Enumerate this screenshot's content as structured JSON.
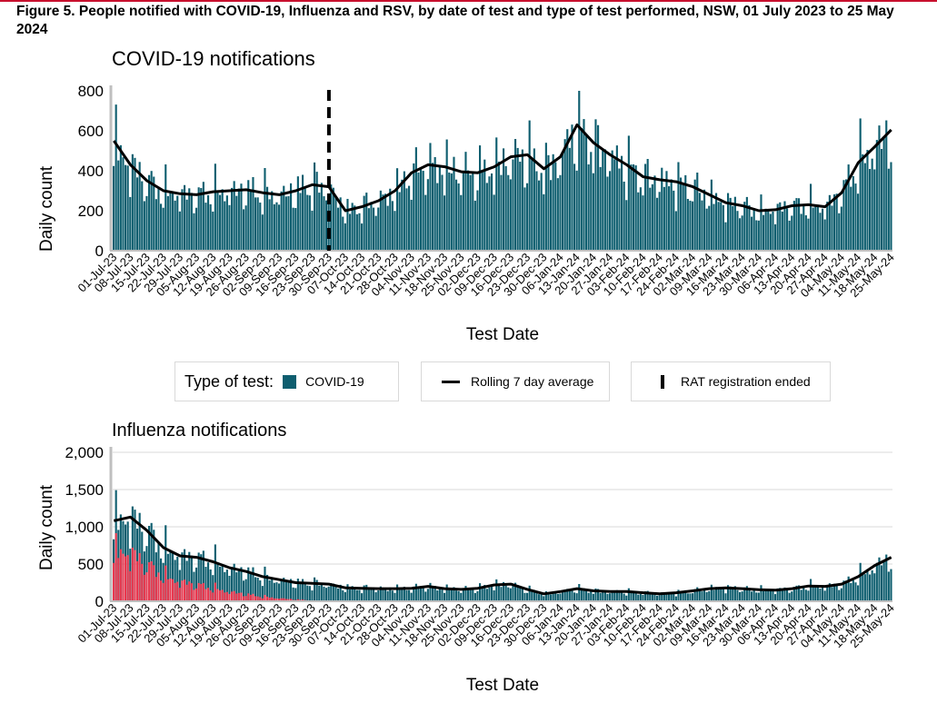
{
  "figure": {
    "title": "Figure 5. People notified with COVID-19, Influenza and RSV, by date of test and type of test performed, NSW, 01 July 2023 to 25 May 2024",
    "colors": {
      "covid": "#0e5e6f",
      "rat": "#e8384f",
      "avg": "#000000",
      "accent": "#c8102e"
    }
  },
  "legend": {
    "type_label": "Type of test:",
    "covid_label": "COVID-19",
    "avg_label": "Rolling 7 day average",
    "rat_label": "RAT registration ended"
  },
  "chart_data": [
    {
      "type": "bar",
      "title": "COVID-19 notifications",
      "xlabel": "Test Date",
      "ylabel": "Daily count",
      "ylim": [
        0,
        800
      ],
      "yticks": [
        "0",
        "200",
        "400",
        "600",
        "800"
      ],
      "grid": false,
      "date_range": [
        "2023-07-01",
        "2024-05-25"
      ],
      "x_ticks": [
        "01-Jul-23",
        "08-Jul-23",
        "15-Jul-23",
        "22-Jul-23",
        "29-Jul-23",
        "05-Aug-23",
        "12-Aug-23",
        "19-Aug-23",
        "26-Aug-23",
        "02-Sep-23",
        "09-Sep-23",
        "16-Sep-23",
        "23-Sep-23",
        "30-Sep-23",
        "07-Oct-23",
        "14-Oct-23",
        "21-Oct-23",
        "28-Oct-23",
        "04-Nov-23",
        "11-Nov-23",
        "18-Nov-23",
        "25-Nov-23",
        "02-Dec-23",
        "09-Dec-23",
        "16-Dec-23",
        "23-Dec-23",
        "30-Dec-23",
        "06-Jan-24",
        "13-Jan-24",
        "20-Jan-24",
        "27-Jan-24",
        "03-Feb-24",
        "10-Feb-24",
        "17-Feb-24",
        "24-Feb-24",
        "02-Mar-24",
        "09-Mar-24",
        "16-Mar-24",
        "23-Mar-24",
        "30-Mar-24",
        "06-Apr-24",
        "13-Apr-24",
        "20-Apr-24",
        "27-Apr-24",
        "04-May-24",
        "11-May-24",
        "18-May-24",
        "25-May-24"
      ],
      "rat_registration_ended": "2023-09-30",
      "weekly_average": [
        {
          "date": "2023-07-01",
          "value": 550
        },
        {
          "date": "2023-07-08",
          "value": 430
        },
        {
          "date": "2023-07-15",
          "value": 350
        },
        {
          "date": "2023-07-22",
          "value": 300
        },
        {
          "date": "2023-07-29",
          "value": 285
        },
        {
          "date": "2023-08-05",
          "value": 280
        },
        {
          "date": "2023-08-12",
          "value": 295
        },
        {
          "date": "2023-08-19",
          "value": 300
        },
        {
          "date": "2023-08-26",
          "value": 305
        },
        {
          "date": "2023-09-02",
          "value": 290
        },
        {
          "date": "2023-09-09",
          "value": 280
        },
        {
          "date": "2023-09-16",
          "value": 300
        },
        {
          "date": "2023-09-23",
          "value": 330
        },
        {
          "date": "2023-09-30",
          "value": 320
        },
        {
          "date": "2023-10-07",
          "value": 200
        },
        {
          "date": "2023-10-14",
          "value": 220
        },
        {
          "date": "2023-10-21",
          "value": 250
        },
        {
          "date": "2023-10-28",
          "value": 300
        },
        {
          "date": "2023-11-04",
          "value": 390
        },
        {
          "date": "2023-11-11",
          "value": 430
        },
        {
          "date": "2023-11-18",
          "value": 420
        },
        {
          "date": "2023-11-25",
          "value": 395
        },
        {
          "date": "2023-12-02",
          "value": 390
        },
        {
          "date": "2023-12-09",
          "value": 420
        },
        {
          "date": "2023-12-16",
          "value": 470
        },
        {
          "date": "2023-12-23",
          "value": 480
        },
        {
          "date": "2023-12-30",
          "value": 410
        },
        {
          "date": "2024-01-06",
          "value": 470
        },
        {
          "date": "2024-01-13",
          "value": 630
        },
        {
          "date": "2024-01-20",
          "value": 540
        },
        {
          "date": "2024-01-27",
          "value": 480
        },
        {
          "date": "2024-02-03",
          "value": 430
        },
        {
          "date": "2024-02-10",
          "value": 370
        },
        {
          "date": "2024-02-17",
          "value": 355
        },
        {
          "date": "2024-02-24",
          "value": 345
        },
        {
          "date": "2024-03-02",
          "value": 320
        },
        {
          "date": "2024-03-09",
          "value": 280
        },
        {
          "date": "2024-03-16",
          "value": 240
        },
        {
          "date": "2024-03-23",
          "value": 225
        },
        {
          "date": "2024-03-30",
          "value": 200
        },
        {
          "date": "2024-04-06",
          "value": 205
        },
        {
          "date": "2024-04-13",
          "value": 225
        },
        {
          "date": "2024-04-20",
          "value": 230
        },
        {
          "date": "2024-04-27",
          "value": 220
        },
        {
          "date": "2024-05-04",
          "value": 290
        },
        {
          "date": "2024-05-11",
          "value": 440
        },
        {
          "date": "2024-05-18",
          "value": 520
        },
        {
          "date": "2024-05-25",
          "value": 605
        }
      ]
    },
    {
      "type": "bar",
      "title": "Influenza notifications",
      "xlabel": "Test Date",
      "ylabel": "Daily count",
      "ylim": [
        0,
        2000
      ],
      "yticks": [
        "0",
        "500",
        "1,000",
        "1,500",
        "2,000"
      ],
      "grid": true,
      "date_range": [
        "2023-07-01",
        "2024-05-25"
      ],
      "x_ticks": [
        "01-Jul-23",
        "08-Jul-23",
        "15-Jul-23",
        "22-Jul-23",
        "29-Jul-23",
        "05-Aug-23",
        "12-Aug-23",
        "19-Aug-23",
        "26-Aug-23",
        "02-Sep-23",
        "09-Sep-23",
        "16-Sep-23",
        "23-Sep-23",
        "30-Sep-23",
        "07-Oct-23",
        "14-Oct-23",
        "21-Oct-23",
        "28-Oct-23",
        "04-Nov-23",
        "11-Nov-23",
        "18-Nov-23",
        "25-Nov-23",
        "02-Dec-23",
        "09-Dec-23",
        "16-Dec-23",
        "23-Dec-23",
        "30-Dec-23",
        "06-Jan-24",
        "13-Jan-24",
        "20-Jan-24",
        "27-Jan-24",
        "03-Feb-24",
        "10-Feb-24",
        "17-Feb-24",
        "24-Feb-24",
        "02-Mar-24",
        "09-Mar-24",
        "16-Mar-24",
        "23-Mar-24",
        "30-Mar-24",
        "06-Apr-24",
        "13-Apr-24",
        "20-Apr-24",
        "27-Apr-24",
        "04-May-24",
        "11-May-24",
        "18-May-24",
        "25-May-24"
      ],
      "weekly_average": [
        {
          "date": "2023-07-01",
          "value": 1080
        },
        {
          "date": "2023-07-08",
          "value": 1130
        },
        {
          "date": "2023-07-15",
          "value": 950
        },
        {
          "date": "2023-07-22",
          "value": 720
        },
        {
          "date": "2023-07-29",
          "value": 610
        },
        {
          "date": "2023-08-05",
          "value": 590
        },
        {
          "date": "2023-08-12",
          "value": 530
        },
        {
          "date": "2023-08-19",
          "value": 450
        },
        {
          "date": "2023-08-26",
          "value": 400
        },
        {
          "date": "2023-09-02",
          "value": 330
        },
        {
          "date": "2023-09-09",
          "value": 290
        },
        {
          "date": "2023-09-16",
          "value": 250
        },
        {
          "date": "2023-09-23",
          "value": 240
        },
        {
          "date": "2023-09-30",
          "value": 230
        },
        {
          "date": "2023-10-07",
          "value": 180
        },
        {
          "date": "2023-10-14",
          "value": 175
        },
        {
          "date": "2023-10-21",
          "value": 170
        },
        {
          "date": "2023-10-28",
          "value": 170
        },
        {
          "date": "2023-11-04",
          "value": 175
        },
        {
          "date": "2023-11-11",
          "value": 200
        },
        {
          "date": "2023-11-18",
          "value": 170
        },
        {
          "date": "2023-11-25",
          "value": 160
        },
        {
          "date": "2023-12-02",
          "value": 175
        },
        {
          "date": "2023-12-09",
          "value": 220
        },
        {
          "date": "2023-12-16",
          "value": 230
        },
        {
          "date": "2023-12-23",
          "value": 160
        },
        {
          "date": "2023-12-30",
          "value": 100
        },
        {
          "date": "2024-01-06",
          "value": 130
        },
        {
          "date": "2024-01-13",
          "value": 170
        },
        {
          "date": "2024-01-20",
          "value": 140
        },
        {
          "date": "2024-01-27",
          "value": 130
        },
        {
          "date": "2024-02-03",
          "value": 130
        },
        {
          "date": "2024-02-10",
          "value": 115
        },
        {
          "date": "2024-02-17",
          "value": 100
        },
        {
          "date": "2024-02-24",
          "value": 115
        },
        {
          "date": "2024-03-02",
          "value": 140
        },
        {
          "date": "2024-03-09",
          "value": 170
        },
        {
          "date": "2024-03-16",
          "value": 180
        },
        {
          "date": "2024-03-23",
          "value": 170
        },
        {
          "date": "2024-03-30",
          "value": 155
        },
        {
          "date": "2024-04-06",
          "value": 150
        },
        {
          "date": "2024-04-13",
          "value": 170
        },
        {
          "date": "2024-04-20",
          "value": 205
        },
        {
          "date": "2024-04-27",
          "value": 200
        },
        {
          "date": "2024-05-04",
          "value": 230
        },
        {
          "date": "2024-05-11",
          "value": 330
        },
        {
          "date": "2024-05-18",
          "value": 480
        },
        {
          "date": "2024-05-25",
          "value": 590
        }
      ]
    }
  ]
}
